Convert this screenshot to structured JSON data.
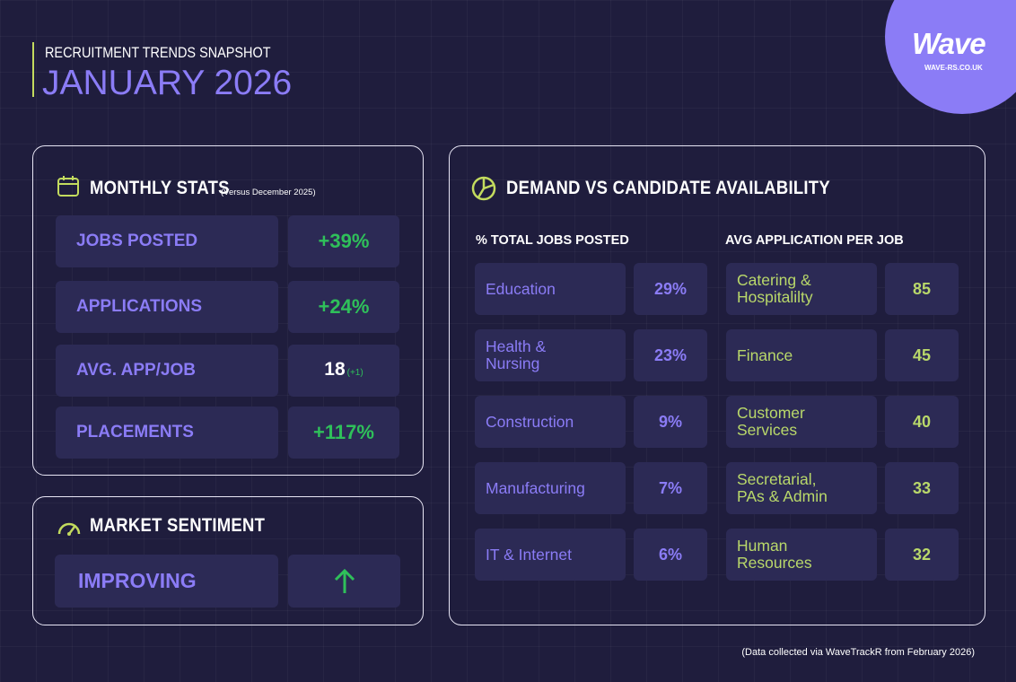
{
  "header": {
    "subtitle": "RECRUITMENT TRENDS SNAPSHOT",
    "title": "JANUARY 2026"
  },
  "logo": {
    "name": "Wave",
    "url": "WAVE-RS.CO.UK"
  },
  "monthly_stats": {
    "title": "MONTHLY STATS",
    "note": "(Versus December 2025)",
    "rows": [
      {
        "label": "JOBS POSTED",
        "value": "+39%"
      },
      {
        "label": "APPLICATIONS",
        "value": "+24%"
      },
      {
        "label": "AVG. APP/JOB",
        "value": "18",
        "change": "(+1)"
      },
      {
        "label": "PLACEMENTS",
        "value": "+117%"
      }
    ]
  },
  "market_sentiment": {
    "title": "MARKET SENTIMENT",
    "status": "IMPROVING"
  },
  "demand": {
    "title": "DEMAND VS CANDIDATE AVAILABILITY",
    "columns": [
      {
        "heading": "% TOTAL JOBS POSTED",
        "rows": [
          {
            "label": "Education",
            "value": "29%"
          },
          {
            "label": "Health &\nNursing",
            "value": "23%"
          },
          {
            "label": "Construction",
            "value": "9%"
          },
          {
            "label": "Manufacturing",
            "value": "7%"
          },
          {
            "label": "IT & Internet",
            "value": "6%"
          }
        ]
      },
      {
        "heading": "AVG APPLICATION PER JOB",
        "rows": [
          {
            "label": "Catering &\nHospitalilty",
            "value": "85"
          },
          {
            "label": "Finance",
            "value": "45"
          },
          {
            "label": "Customer\nServices",
            "value": "40"
          },
          {
            "label": "Secretarial,\nPAs & Admin",
            "value": "33"
          },
          {
            "label": "Human\nResources",
            "value": "32"
          }
        ]
      }
    ]
  },
  "footer": {
    "note": "(Data collected via WaveTrackR from February 2026)"
  }
}
